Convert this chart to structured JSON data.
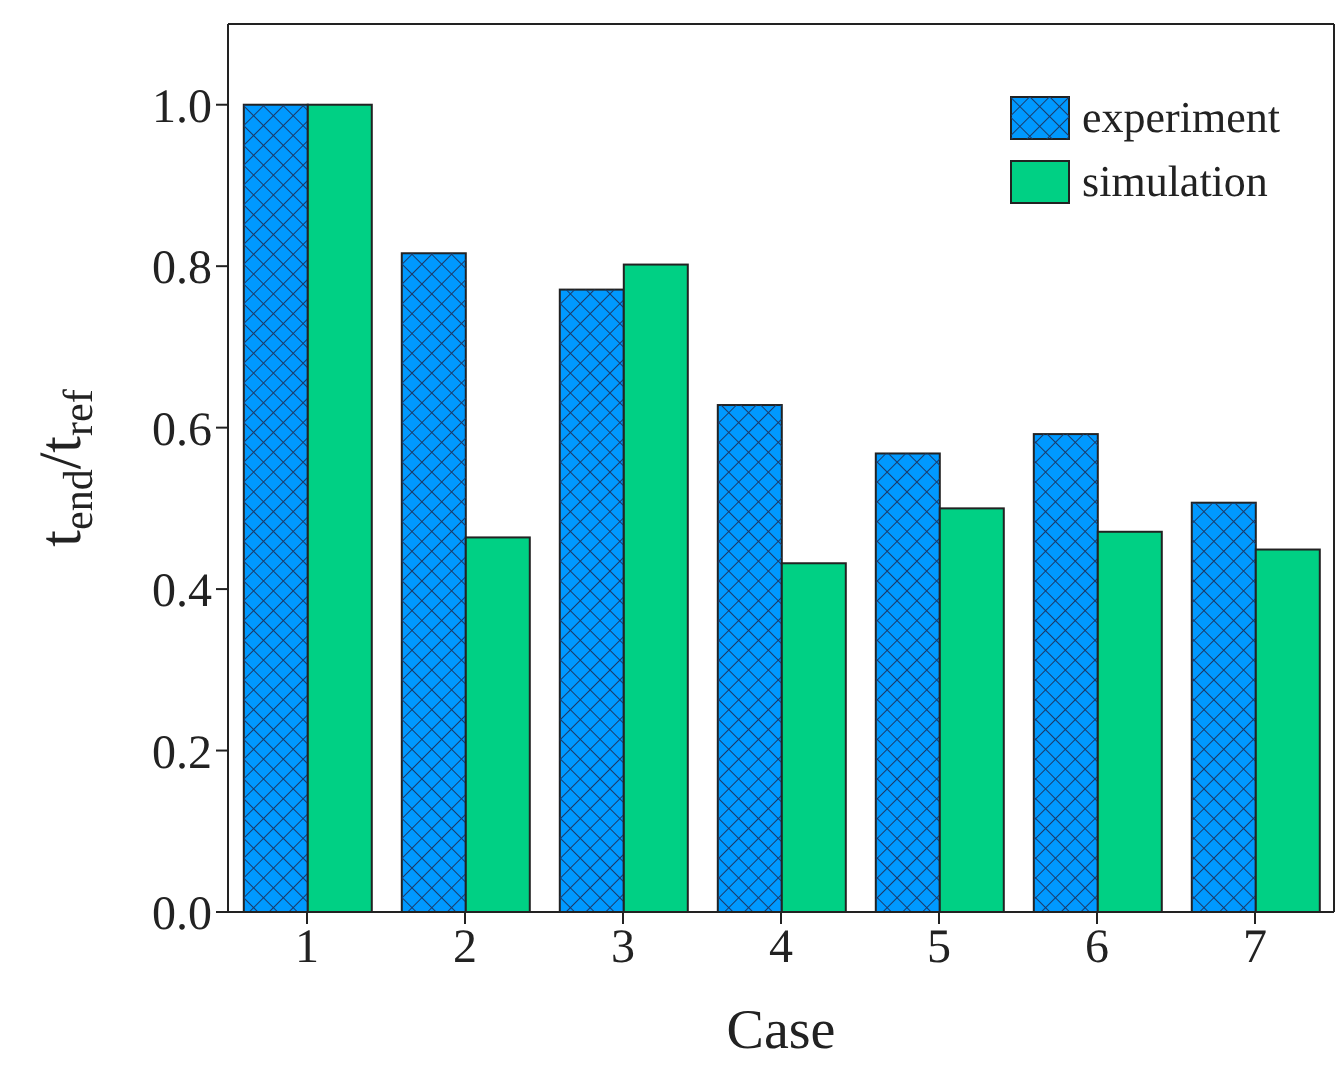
{
  "chart_data": {
    "type": "bar",
    "xlabel": "Case",
    "ylabel": "t$_{end}$/t$_{ref}$",
    "categories": [
      "1",
      "2",
      "3",
      "4",
      "5",
      "6",
      "7"
    ],
    "series": [
      {
        "name": "experiment",
        "color": "#0099ff",
        "values": [
          1.0,
          0.816,
          0.771,
          0.628,
          0.568,
          0.592,
          0.507
        ]
      },
      {
        "name": "simulation",
        "color": "#00d084",
        "values": [
          1.0,
          0.464,
          0.802,
          0.432,
          0.5,
          0.471,
          0.449
        ]
      }
    ],
    "ylim": [
      0,
      1.1
    ],
    "yticks": [
      {
        "value": 0,
        "label": "0.0"
      },
      0.2,
      0.4,
      0.6,
      0.8,
      {
        "value": 1,
        "label": "1.0"
      }
    ],
    "grid": false,
    "legend": "top right"
  }
}
